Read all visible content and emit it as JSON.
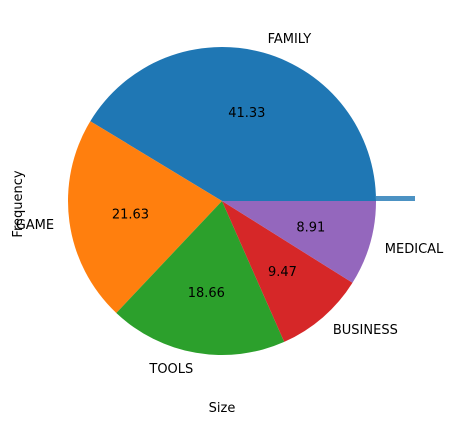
{
  "chart_data": {
    "type": "pie",
    "title": "",
    "xlabel": "Size",
    "ylabel": "Frequency",
    "start_angle_deg": 0,
    "direction": "counterclockwise",
    "slices": [
      {
        "label": "FAMILY",
        "value": 41.33,
        "pct_label": "41.33",
        "color": "#1f77b4"
      },
      {
        "label": "GAME",
        "value": 21.63,
        "pct_label": "21.63",
        "color": "#ff7f0e"
      },
      {
        "label": "TOOLS",
        "value": 18.66,
        "pct_label": "18.66",
        "color": "#2ca02c"
      },
      {
        "label": "BUSINESS",
        "value": 9.47,
        "pct_label": "9.47",
        "color": "#d62728"
      },
      {
        "label": "MEDICAL",
        "value": 8.91,
        "pct_label": "8.91",
        "color": "#9467bd"
      }
    ]
  }
}
